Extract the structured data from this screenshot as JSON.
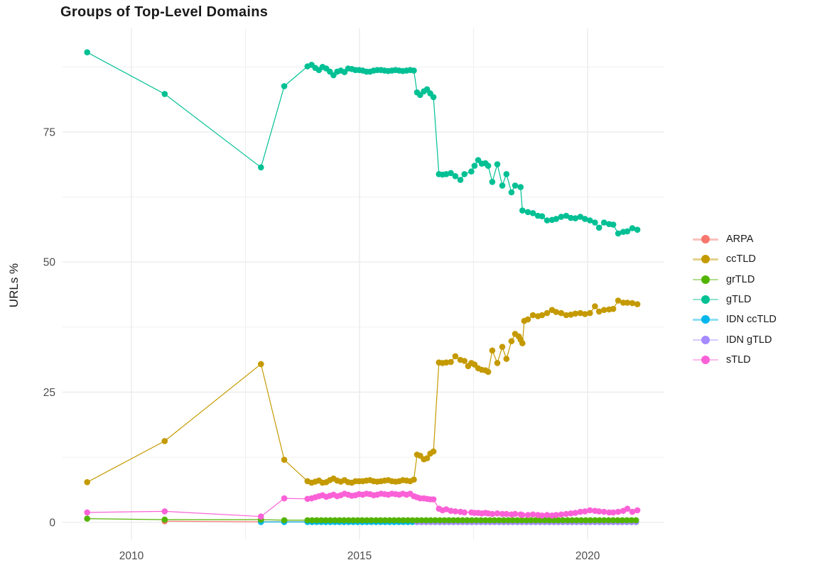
{
  "title": "Groups of Top-Level Domains",
  "colors": {
    "background": "#ffffff",
    "grid": "#ebebeb",
    "tick_text": "#4d4d4d",
    "title_text": "#1a1a1a"
  },
  "legend": {
    "items": [
      {
        "label": "ARPA",
        "color": "#F8766D"
      },
      {
        "label": "ccTLD",
        "color": "#C49A00"
      },
      {
        "label": "grTLD",
        "color": "#53B400"
      },
      {
        "label": "gTLD",
        "color": "#00C094"
      },
      {
        "label": "IDN ccTLD",
        "color": "#00B6EB"
      },
      {
        "label": "IDN gTLD",
        "color": "#A58AFF"
      },
      {
        "label": "sTLD",
        "color": "#FB61D7"
      }
    ]
  },
  "chart_data": {
    "type": "line",
    "title": "Groups of Top-Level Domains",
    "xlabel": "",
    "ylabel": "URLs %",
    "x_domain": [
      2008.49,
      2021.68
    ],
    "y_domain": [
      -3.3,
      94.9
    ],
    "x_ticks": [
      {
        "value": 2010,
        "label": "2010"
      },
      {
        "value": 2015,
        "label": "2015"
      },
      {
        "value": 2020,
        "label": "2020"
      }
    ],
    "y_ticks": [
      {
        "value": 0,
        "label": "0"
      },
      {
        "value": 25,
        "label": "25"
      },
      {
        "value": 50,
        "label": "50"
      },
      {
        "value": 75,
        "label": "75"
      }
    ],
    "x_minor_ticks": [
      2012.5,
      2017.5
    ],
    "y_minor_ticks": [
      12.5,
      37.5,
      62.5,
      87.5
    ],
    "grid": true,
    "legend_position": "right",
    "series": [
      {
        "name": "ARPA",
        "color": "#F8766D",
        "points": [
          [
            2010.73,
            0.2
          ],
          [
            2012.84,
            0.1
          ],
          [
            2013.35,
            0.1
          ]
        ],
        "spans": [
          {
            "from": 2013.86,
            "to": 2021.06,
            "step": 0.1,
            "value": 0.1
          }
        ]
      },
      {
        "name": "IDN ccTLD",
        "color": "#00B6EB",
        "points": [
          [
            2012.84,
            0.05
          ],
          [
            2013.35,
            0.05
          ]
        ],
        "spans": [
          {
            "from": 2013.86,
            "to": 2021.06,
            "step": 0.1,
            "value": 0.05
          }
        ]
      },
      {
        "name": "IDN gTLD",
        "color": "#A58AFF",
        "points": [],
        "spans": [
          {
            "from": 2016.26,
            "to": 2021.06,
            "step": 0.1,
            "value": 0.05
          }
        ]
      },
      {
        "name": "ccTLD",
        "color": "#C49A00",
        "points": [
          [
            2009.03,
            7.7
          ],
          [
            2010.73,
            15.6
          ],
          [
            2012.84,
            30.4
          ],
          [
            2013.35,
            12.0
          ],
          [
            2013.86,
            7.9
          ],
          [
            2013.95,
            7.6
          ],
          [
            2014.03,
            7.8
          ],
          [
            2014.11,
            8.0
          ],
          [
            2014.19,
            7.6
          ],
          [
            2014.27,
            7.7
          ],
          [
            2014.35,
            8.1
          ],
          [
            2014.43,
            8.4
          ],
          [
            2014.51,
            8.0
          ],
          [
            2014.59,
            7.8
          ],
          [
            2014.67,
            8.1
          ],
          [
            2014.75,
            7.7
          ],
          [
            2014.83,
            7.6
          ],
          [
            2014.91,
            7.9
          ],
          [
            2014.99,
            7.9
          ],
          [
            2015.07,
            7.9
          ],
          [
            2015.15,
            8.0
          ],
          [
            2015.23,
            8.1
          ],
          [
            2015.31,
            7.9
          ],
          [
            2015.39,
            7.8
          ],
          [
            2015.47,
            7.9
          ],
          [
            2015.55,
            8.0
          ],
          [
            2015.63,
            8.1
          ],
          [
            2015.71,
            7.9
          ],
          [
            2015.79,
            7.8
          ],
          [
            2015.87,
            7.9
          ],
          [
            2015.95,
            8.1
          ],
          [
            2016.03,
            8.0
          ],
          [
            2016.11,
            7.9
          ],
          [
            2016.19,
            8.2
          ],
          [
            2016.26,
            13.0
          ],
          [
            2016.33,
            12.8
          ],
          [
            2016.41,
            12.1
          ],
          [
            2016.48,
            12.3
          ],
          [
            2016.55,
            13.2
          ],
          [
            2016.62,
            13.6
          ],
          [
            2016.74,
            30.7
          ],
          [
            2016.82,
            30.6
          ],
          [
            2016.9,
            30.7
          ],
          [
            2017.0,
            30.8
          ],
          [
            2017.1,
            31.9
          ],
          [
            2017.21,
            31.2
          ],
          [
            2017.3,
            31.0
          ],
          [
            2017.38,
            30.0
          ],
          [
            2017.45,
            30.6
          ],
          [
            2017.52,
            30.3
          ],
          [
            2017.6,
            29.6
          ],
          [
            2017.68,
            29.3
          ],
          [
            2017.76,
            29.2
          ],
          [
            2017.82,
            28.9
          ],
          [
            2017.91,
            33.0
          ],
          [
            2018.02,
            30.6
          ],
          [
            2018.13,
            33.7
          ],
          [
            2018.22,
            31.4
          ],
          [
            2018.33,
            34.8
          ],
          [
            2018.41,
            36.2
          ],
          [
            2018.49,
            35.7
          ],
          [
            2018.53,
            35.1
          ],
          [
            2018.57,
            34.4
          ],
          [
            2018.61,
            38.7
          ],
          [
            2018.69,
            39.0
          ],
          [
            2018.8,
            39.8
          ],
          [
            2018.91,
            39.6
          ],
          [
            2019.0,
            39.8
          ],
          [
            2019.11,
            40.2
          ],
          [
            2019.22,
            40.8
          ],
          [
            2019.31,
            40.4
          ],
          [
            2019.42,
            40.2
          ],
          [
            2019.53,
            39.8
          ],
          [
            2019.63,
            39.9
          ],
          [
            2019.73,
            40.1
          ],
          [
            2019.84,
            40.2
          ],
          [
            2019.94,
            40.0
          ],
          [
            2020.05,
            40.2
          ],
          [
            2020.16,
            41.5
          ],
          [
            2020.25,
            40.5
          ],
          [
            2020.36,
            40.8
          ],
          [
            2020.47,
            40.9
          ],
          [
            2020.56,
            41.0
          ],
          [
            2020.67,
            42.6
          ],
          [
            2020.78,
            42.2
          ],
          [
            2020.87,
            42.2
          ],
          [
            2020.98,
            42.1
          ],
          [
            2021.09,
            41.9
          ]
        ],
        "spans": []
      },
      {
        "name": "gTLD",
        "color": "#00C094",
        "points": [
          [
            2009.03,
            90.3
          ],
          [
            2010.73,
            82.3
          ],
          [
            2012.84,
            68.2
          ],
          [
            2013.35,
            83.8
          ],
          [
            2013.86,
            87.6
          ],
          [
            2013.95,
            87.9
          ],
          [
            2014.03,
            87.3
          ],
          [
            2014.11,
            86.9
          ],
          [
            2014.19,
            87.5
          ],
          [
            2014.27,
            87.2
          ],
          [
            2014.35,
            86.6
          ],
          [
            2014.43,
            85.9
          ],
          [
            2014.51,
            86.6
          ],
          [
            2014.59,
            86.8
          ],
          [
            2014.67,
            86.5
          ],
          [
            2014.75,
            87.2
          ],
          [
            2014.83,
            87.1
          ],
          [
            2014.91,
            86.9
          ],
          [
            2014.99,
            86.9
          ],
          [
            2015.07,
            86.8
          ],
          [
            2015.15,
            86.6
          ],
          [
            2015.23,
            86.6
          ],
          [
            2015.31,
            86.8
          ],
          [
            2015.39,
            86.9
          ],
          [
            2015.47,
            86.9
          ],
          [
            2015.55,
            86.8
          ],
          [
            2015.63,
            86.7
          ],
          [
            2015.71,
            86.8
          ],
          [
            2015.79,
            86.9
          ],
          [
            2015.87,
            86.8
          ],
          [
            2015.95,
            86.7
          ],
          [
            2016.03,
            86.8
          ],
          [
            2016.11,
            86.9
          ],
          [
            2016.19,
            86.8
          ],
          [
            2016.26,
            82.6
          ],
          [
            2016.33,
            82.1
          ],
          [
            2016.41,
            82.8
          ],
          [
            2016.48,
            83.2
          ],
          [
            2016.55,
            82.4
          ],
          [
            2016.62,
            81.7
          ],
          [
            2016.74,
            66.9
          ],
          [
            2016.82,
            66.8
          ],
          [
            2016.9,
            66.9
          ],
          [
            2017.0,
            67.1
          ],
          [
            2017.1,
            66.5
          ],
          [
            2017.21,
            65.8
          ],
          [
            2017.3,
            66.9
          ],
          [
            2017.45,
            67.4
          ],
          [
            2017.52,
            68.5
          ],
          [
            2017.6,
            69.6
          ],
          [
            2017.68,
            68.9
          ],
          [
            2017.76,
            69.0
          ],
          [
            2017.82,
            68.5
          ],
          [
            2017.91,
            65.4
          ],
          [
            2018.02,
            68.8
          ],
          [
            2018.13,
            64.7
          ],
          [
            2018.22,
            66.9
          ],
          [
            2018.33,
            63.4
          ],
          [
            2018.41,
            64.7
          ],
          [
            2018.53,
            64.4
          ],
          [
            2018.57,
            59.9
          ],
          [
            2018.69,
            59.6
          ],
          [
            2018.8,
            59.4
          ],
          [
            2018.91,
            58.9
          ],
          [
            2019.0,
            58.8
          ],
          [
            2019.11,
            58.0
          ],
          [
            2019.22,
            58.1
          ],
          [
            2019.31,
            58.3
          ],
          [
            2019.42,
            58.7
          ],
          [
            2019.53,
            58.9
          ],
          [
            2019.63,
            58.5
          ],
          [
            2019.73,
            58.4
          ],
          [
            2019.84,
            58.7
          ],
          [
            2019.94,
            58.3
          ],
          [
            2020.05,
            58.0
          ],
          [
            2020.16,
            57.6
          ],
          [
            2020.25,
            56.6
          ],
          [
            2020.36,
            57.6
          ],
          [
            2020.47,
            57.3
          ],
          [
            2020.56,
            57.2
          ],
          [
            2020.67,
            55.5
          ],
          [
            2020.78,
            55.8
          ],
          [
            2020.87,
            55.9
          ],
          [
            2020.98,
            56.5
          ],
          [
            2021.09,
            56.2
          ]
        ],
        "spans": []
      },
      {
        "name": "grTLD",
        "color": "#53B400",
        "points": [
          [
            2009.03,
            0.7
          ],
          [
            2010.73,
            0.5
          ],
          [
            2012.84,
            0.5
          ],
          [
            2013.35,
            0.4
          ]
        ],
        "spans": [
          {
            "from": 2013.86,
            "to": 2021.06,
            "step": 0.1,
            "value": 0.4
          }
        ]
      },
      {
        "name": "sTLD",
        "color": "#FB61D7",
        "points": [
          [
            2009.03,
            1.9
          ],
          [
            2010.73,
            2.1
          ],
          [
            2012.84,
            1.1
          ],
          [
            2013.35,
            4.6
          ],
          [
            2013.86,
            4.5
          ],
          [
            2013.95,
            4.6
          ],
          [
            2014.03,
            4.8
          ],
          [
            2014.11,
            5.0
          ],
          [
            2014.19,
            5.2
          ],
          [
            2014.27,
            4.9
          ],
          [
            2014.35,
            5.1
          ],
          [
            2014.43,
            5.3
          ],
          [
            2014.51,
            5.0
          ],
          [
            2014.59,
            5.2
          ],
          [
            2014.67,
            5.5
          ],
          [
            2014.75,
            5.3
          ],
          [
            2014.83,
            5.1
          ],
          [
            2014.91,
            5.2
          ],
          [
            2014.99,
            5.4
          ],
          [
            2015.07,
            5.3
          ],
          [
            2015.15,
            5.5
          ],
          [
            2015.23,
            5.4
          ],
          [
            2015.31,
            5.2
          ],
          [
            2015.39,
            5.3
          ],
          [
            2015.47,
            5.5
          ],
          [
            2015.55,
            5.4
          ],
          [
            2015.63,
            5.3
          ],
          [
            2015.71,
            5.5
          ],
          [
            2015.79,
            5.4
          ],
          [
            2015.87,
            5.3
          ],
          [
            2015.95,
            5.5
          ],
          [
            2016.03,
            5.3
          ],
          [
            2016.11,
            5.5
          ],
          [
            2016.19,
            5.0
          ],
          [
            2016.26,
            4.8
          ],
          [
            2016.33,
            4.6
          ],
          [
            2016.41,
            4.6
          ],
          [
            2016.48,
            4.5
          ],
          [
            2016.55,
            4.4
          ],
          [
            2016.62,
            4.4
          ],
          [
            2016.74,
            2.6
          ],
          [
            2016.82,
            2.3
          ],
          [
            2016.9,
            2.5
          ],
          [
            2017.0,
            2.2
          ],
          [
            2017.1,
            2.1
          ],
          [
            2017.21,
            2.0
          ],
          [
            2017.3,
            1.9
          ],
          [
            2017.45,
            1.9
          ],
          [
            2017.52,
            1.8
          ],
          [
            2017.6,
            1.8
          ],
          [
            2017.68,
            1.7
          ],
          [
            2017.76,
            1.8
          ],
          [
            2017.82,
            1.7
          ],
          [
            2017.91,
            1.6
          ],
          [
            2018.02,
            1.7
          ],
          [
            2018.13,
            1.6
          ],
          [
            2018.22,
            1.6
          ],
          [
            2018.33,
            1.5
          ],
          [
            2018.41,
            1.6
          ],
          [
            2018.53,
            1.5
          ],
          [
            2018.57,
            1.4
          ],
          [
            2018.69,
            1.4
          ],
          [
            2018.8,
            1.5
          ],
          [
            2018.91,
            1.4
          ],
          [
            2019.0,
            1.3
          ],
          [
            2019.11,
            1.4
          ],
          [
            2019.22,
            1.3
          ],
          [
            2019.31,
            1.4
          ],
          [
            2019.42,
            1.5
          ],
          [
            2019.53,
            1.6
          ],
          [
            2019.63,
            1.7
          ],
          [
            2019.73,
            1.8
          ],
          [
            2019.84,
            2.0
          ],
          [
            2019.94,
            2.1
          ],
          [
            2020.05,
            2.3
          ],
          [
            2020.16,
            2.2
          ],
          [
            2020.25,
            2.1
          ],
          [
            2020.36,
            2.0
          ],
          [
            2020.47,
            1.9
          ],
          [
            2020.56,
            1.9
          ],
          [
            2020.67,
            2.0
          ],
          [
            2020.78,
            2.2
          ],
          [
            2020.87,
            2.6
          ],
          [
            2020.98,
            2.0
          ],
          [
            2021.09,
            2.3
          ]
        ],
        "spans": []
      }
    ]
  }
}
